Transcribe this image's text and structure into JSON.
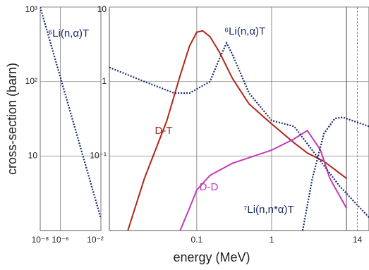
{
  "chart_data": [
    {
      "type": "line",
      "log_x": true,
      "log_y": true,
      "grid": true,
      "ylabel": "cross-section (barn)",
      "xlim": [
        1e-08,
        0.01
      ],
      "ylim": [
        1,
        1000
      ],
      "xticks": [
        {
          "value": 1e-08,
          "label": "10⁻⁸"
        },
        {
          "value": 1e-06,
          "label": "10⁻⁶"
        },
        {
          "value": 0.01,
          "label": "10⁻²"
        }
      ],
      "yticks": [
        10,
        {
          "value": 100,
          "label": "10²"
        },
        {
          "value": 1000,
          "label": "10³"
        }
      ],
      "series": [
        {
          "name": "⁶Li(n,α)T",
          "color": "#1a2a6a",
          "dotted": true,
          "x": [
            1e-08,
            0.01
          ],
          "values": [
            1000,
            1.45
          ]
        }
      ]
    },
    {
      "type": "line",
      "log_x": true,
      "log_y": true,
      "grid": true,
      "xlabel": "energy (MeV)",
      "xlim": [
        0.0068,
        20
      ],
      "ylim": [
        0.01,
        10
      ],
      "xticks": [
        0.1,
        1,
        14
      ],
      "vlines": [
        10
      ],
      "yticks": [
        {
          "value": 0.1,
          "label": "10⁻¹"
        },
        1,
        10
      ],
      "series": [
        {
          "name": "D-T",
          "color": "#b0281a",
          "dotted": false,
          "x": [
            0.012,
            0.02,
            0.04,
            0.06,
            0.08,
            0.1,
            0.12,
            0.15,
            0.2,
            0.3,
            0.5,
            1,
            2,
            3,
            5,
            10
          ],
          "values": [
            0.01,
            0.05,
            0.3,
            1.2,
            3,
            4.6,
            4.8,
            4,
            2.5,
            1.1,
            0.5,
            0.27,
            0.15,
            0.11,
            0.085,
            0.05
          ]
        },
        {
          "name": "D-D",
          "color": "#c13ab8",
          "dotted": false,
          "x": [
            0.06,
            0.08,
            0.1,
            0.15,
            0.3,
            1,
            2,
            3,
            4.5,
            6,
            10
          ],
          "values": [
            0.01,
            0.02,
            0.035,
            0.055,
            0.08,
            0.12,
            0.17,
            0.22,
            0.12,
            0.05,
            0.02
          ]
        },
        {
          "name": "⁶Li(n,α)T",
          "color": "#1a2a6a",
          "dotted": true,
          "x": [
            0.0068,
            0.02,
            0.05,
            0.08,
            0.15,
            0.2,
            0.25,
            0.3,
            0.5,
            1,
            2,
            4,
            8,
            20
          ],
          "values": [
            1.55,
            1.0,
            0.7,
            0.7,
            1.0,
            2,
            3.3,
            2.3,
            0.7,
            0.3,
            0.25,
            0.1,
            0.04,
            0.015
          ]
        },
        {
          "name": "⁷Li(n,n*α)T",
          "color": "#1a2a6a",
          "dotted": true,
          "x": [
            2.6,
            3.5,
            5,
            7,
            9,
            20
          ],
          "values": [
            0.01,
            0.05,
            0.2,
            0.32,
            0.33,
            0.25
          ]
        }
      ]
    }
  ]
}
